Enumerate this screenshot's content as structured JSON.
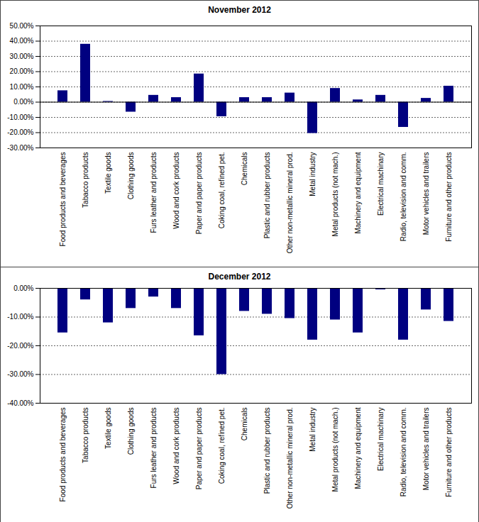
{
  "chart_data": [
    {
      "type": "bar",
      "title": "November 2012",
      "categories": [
        "Food products and beverages",
        "Tabacco products",
        "Textile goods",
        "Clothing goods",
        "Furs leather and products",
        "Wood and cork products",
        "Paper and paper products",
        "Coking coal, refined pet.",
        "Chemicals",
        "Plastic and rubber products",
        "Other non-metallic mineral prod.",
        "Metal industry",
        "Metal products (not mach.)",
        "Machinery and equipment",
        "Electrical machinary",
        "Radio, television and comm.",
        "Motor vehicles and trailers",
        "Furniture and other products"
      ],
      "values": [
        7.5,
        38,
        0.5,
        -6.5,
        4.5,
        3,
        18.5,
        -9.5,
        3,
        3,
        6,
        -20.5,
        9,
        1.5,
        4.5,
        -16.5,
        2.5,
        10.5
      ],
      "color": "#000080",
      "ylim": [
        -30,
        50
      ],
      "yticks": [
        {
          "value": -30,
          "label": "-30.00%"
        },
        {
          "value": -20,
          "label": "-20.00%"
        },
        {
          "value": -10,
          "label": "-10.00%"
        },
        {
          "value": 0,
          "label": "0.00%"
        },
        {
          "value": 10,
          "label": "10.00%"
        },
        {
          "value": 20,
          "label": "20.00%"
        },
        {
          "value": 30,
          "label": "30.00%"
        },
        {
          "value": 40,
          "label": "40.00%"
        },
        {
          "value": 50,
          "label": "50.00%"
        }
      ],
      "grid": true
    },
    {
      "type": "bar",
      "title": "December 2012",
      "categories": [
        "Food products and beverages",
        "Tabacco products",
        "Textile goods",
        "Clothing goods",
        "Furs leather and products",
        "Wood and cork products",
        "Paper and paper products",
        "Coking coal, refined pet.",
        "Chemicals",
        "Plastic and rubber products",
        "Other non-metallic mineral prod.",
        "Metal industry",
        "Metal products (not mach.)",
        "Machinery and equipment",
        "Electrical machinary",
        "Radio, television and comm.",
        "Motor vehicles and trailers",
        "Furniture and other products"
      ],
      "values": [
        -15.5,
        -4,
        -12,
        -7,
        -3,
        -7,
        -16.5,
        -30,
        -8,
        -9,
        -10.5,
        -18,
        -11,
        -15.5,
        -0.5,
        -18,
        -7.5,
        -11.5
      ],
      "color": "#000080",
      "ylim": [
        -40,
        0
      ],
      "yticks": [
        {
          "value": -40,
          "label": "-40.00%"
        },
        {
          "value": -30,
          "label": "-30.00%"
        },
        {
          "value": -20,
          "label": "-20.00%"
        },
        {
          "value": -10,
          "label": "-10.00%"
        },
        {
          "value": 0,
          "label": "0.00%"
        }
      ],
      "grid": true
    }
  ]
}
